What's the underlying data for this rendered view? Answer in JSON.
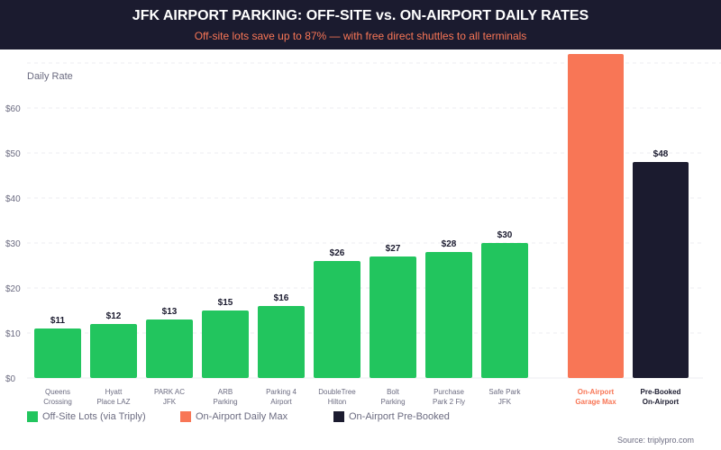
{
  "header": {
    "title": "JFK AIRPORT PARKING: OFF-SITE vs. ON-AIRPORT DAILY RATES",
    "subtitle": "Off-site lots save up to 87% — with free direct shuttles to all terminals"
  },
  "colors": {
    "offsite": "#22c55e",
    "onairport_max": "#f87656",
    "prebooked": "#1b1b2f"
  },
  "chart_data": {
    "type": "bar",
    "ylabel": "Daily Rate",
    "ylim": [
      0,
      72
    ],
    "yticks": [
      "$0",
      "$10",
      "$20",
      "$30",
      "$40",
      "$50",
      "$60"
    ],
    "grid": true,
    "legend_placement": "bottom",
    "categories": [
      [
        "Queens",
        "Crossing"
      ],
      [
        "Hyatt",
        "Place LAZ"
      ],
      [
        "PARK AC",
        "JFK"
      ],
      [
        "ARB",
        "Parking"
      ],
      [
        "Parking 4",
        "Airport"
      ],
      [
        "DoubleTree",
        "Hilton"
      ],
      [
        "Bolt",
        "Parking"
      ],
      [
        "Purchase",
        "Park 2 Fly"
      ],
      [
        "Safe Park",
        "JFK"
      ],
      [
        "On-Airport",
        "Garage Max"
      ],
      [
        "Pre-Booked",
        "On-Airport"
      ]
    ],
    "values": [
      11,
      12,
      13,
      15,
      16,
      26,
      27,
      28,
      30,
      72,
      48
    ],
    "labels": [
      "$11",
      "$12",
      "$13",
      "$15",
      "$16",
      "$26",
      "$27",
      "$28",
      "$30",
      "",
      "$48"
    ],
    "series_group": [
      "offsite",
      "offsite",
      "offsite",
      "offsite",
      "offsite",
      "offsite",
      "offsite",
      "offsite",
      "offsite",
      "onairport_max",
      "prebooked"
    ],
    "legend": [
      "Off-Site Lots (via Triply)",
      "On-Airport Daily Max",
      "On-Airport Pre-Booked"
    ]
  },
  "source": "Source: triplypro.com"
}
